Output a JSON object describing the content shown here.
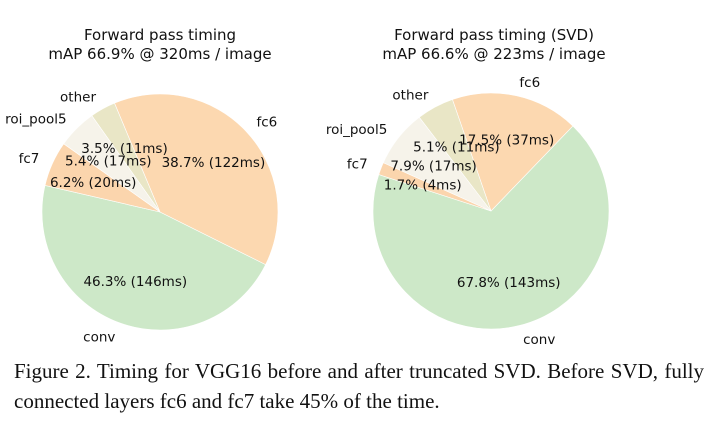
{
  "chart_data": [
    {
      "type": "pie",
      "title": "Forward pass timing",
      "subtitle": "mAP 66.9% @ 320ms / image",
      "categories": [
        "conv",
        "fc6",
        "other",
        "roi_pool5",
        "fc7"
      ],
      "values": [
        46.3,
        38.7,
        3.5,
        5.4,
        6.2
      ],
      "data_labels": [
        "46.3% (146ms)",
        "38.7% (122ms)",
        "3.5% (11ms)",
        "5.4% (17ms)",
        "6.2% (20ms)"
      ],
      "colors": [
        "#cde8c8",
        "#fcd8b0",
        "#e9e6c6",
        "#f6f3ea",
        "#fbd5ad"
      ],
      "legend": "none"
    },
    {
      "type": "pie",
      "title": "Forward pass timing (SVD)",
      "subtitle": "mAP 66.6% @ 223ms / image",
      "categories": [
        "conv",
        "fc6",
        "other",
        "roi_pool5",
        "fc7"
      ],
      "values": [
        67.8,
        17.5,
        5.1,
        7.9,
        1.7
      ],
      "data_labels": [
        "67.8% (143ms)",
        "17.5% (37ms)",
        "5.1% (11ms)",
        "7.9% (17ms)",
        "1.7% (4ms)"
      ],
      "colors": [
        "#cde8c8",
        "#fcd8b0",
        "#e9e6c6",
        "#f6f3ea",
        "#fbd5ad"
      ],
      "legend": "none"
    }
  ],
  "caption": "Figure 2. Timing for VGG16 before and after truncated SVD. Before SVD, fully connected layers fc6 and fc7 take 45% of the time."
}
